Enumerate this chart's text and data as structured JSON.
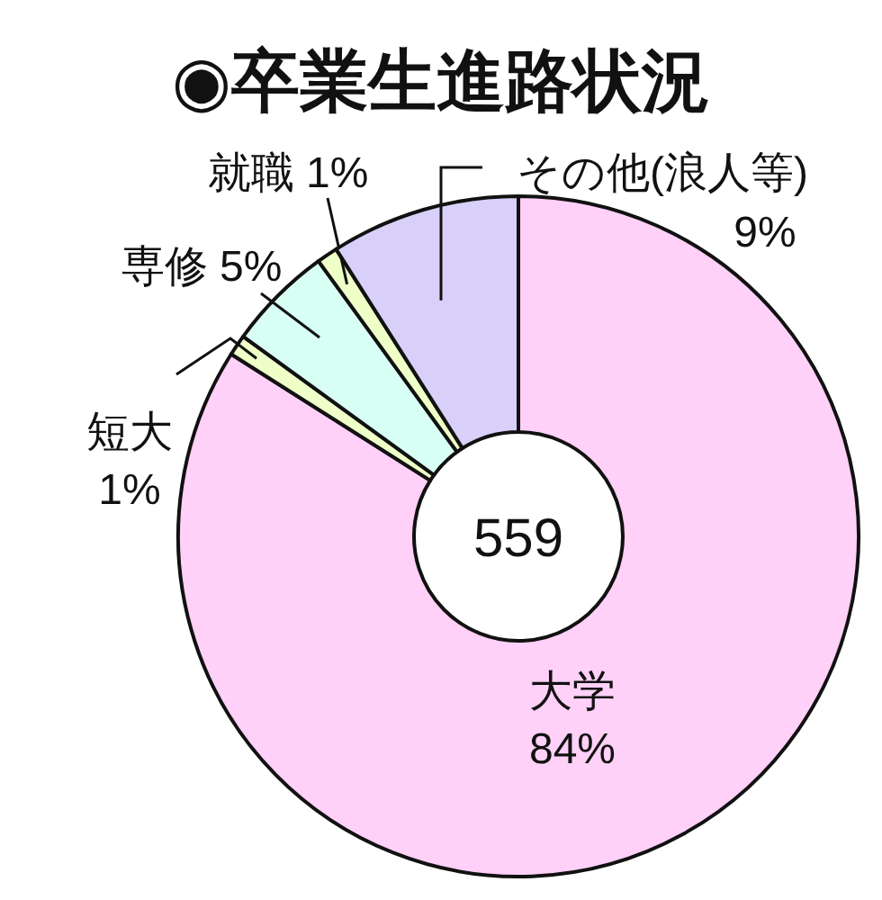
{
  "chart_data": {
    "type": "donut",
    "title": "◉卒業生進路状況",
    "categories": [
      "大学",
      "短大",
      "専修",
      "就職",
      "その他(浪人等)"
    ],
    "values": [
      84,
      1,
      5,
      1,
      9
    ],
    "value_labels": [
      "84%",
      "1%",
      "5%",
      "1%",
      "9%"
    ],
    "colors": [
      "#ffd0f8",
      "#eeffc8",
      "#d8fff4",
      "#eeffc8",
      "#d8d0f8"
    ],
    "annotations": [
      "559"
    ]
  }
}
